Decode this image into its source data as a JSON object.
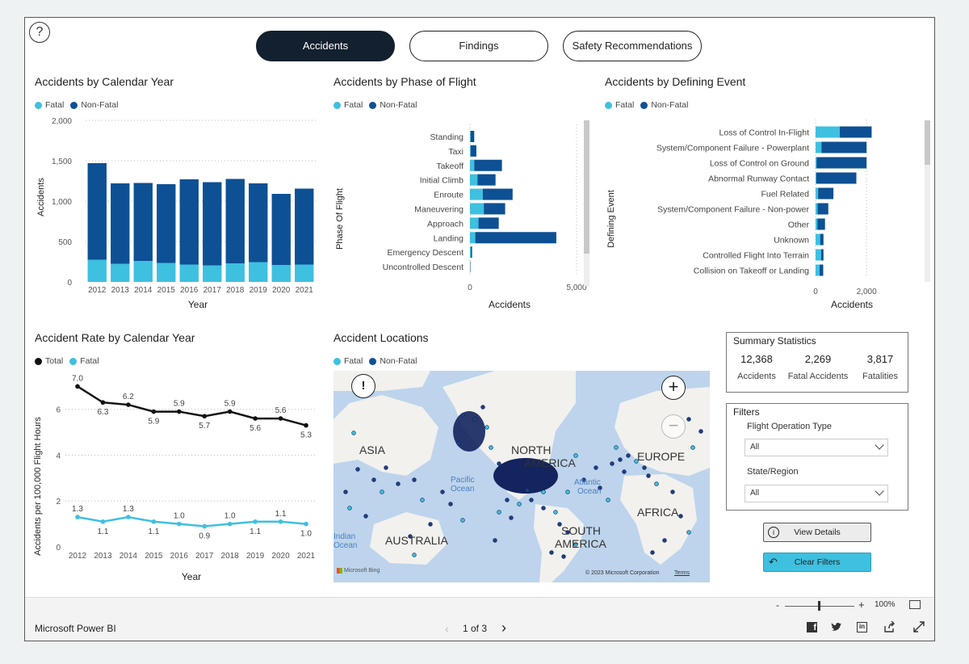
{
  "tabs": [
    {
      "label": "Accidents",
      "active": true
    },
    {
      "label": "Findings",
      "active": false
    },
    {
      "label": "Safety Recommendations",
      "active": false
    }
  ],
  "help_glyph": "?",
  "colors": {
    "fatal": "#3ec0e0",
    "nonfatal": "#0d5094",
    "total": "#111111"
  },
  "legend": {
    "fatal": "Fatal",
    "nonfatal": "Non-Fatal",
    "total": "Total"
  },
  "chart_data": [
    {
      "type": "bar",
      "title": "Accidents by Calendar Year",
      "stacked": true,
      "categories": [
        "2012",
        "2013",
        "2014",
        "2015",
        "2016",
        "2017",
        "2018",
        "2019",
        "2020",
        "2021"
      ],
      "series": [
        {
          "name": "Fatal",
          "values": [
            275,
            225,
            260,
            235,
            215,
            205,
            230,
            245,
            210,
            215
          ]
        },
        {
          "name": "Non-Fatal",
          "values": [
            1195,
            995,
            965,
            975,
            1055,
            1030,
            1045,
            975,
            880,
            940
          ]
        }
      ],
      "xlabel": "Year",
      "ylabel": "Accidents",
      "ylim": [
        0,
        2000
      ],
      "yticks": [
        "0",
        "500",
        "1,000",
        "1,500",
        "2,000"
      ],
      "grid": true,
      "legend": "top-left"
    },
    {
      "type": "bar",
      "orientation": "horizontal",
      "title": "Accidents by Phase of Flight",
      "stacked": true,
      "categories": [
        "Standing",
        "Taxi",
        "Takeoff",
        "Initial Climb",
        "Enroute",
        "Maneuvering",
        "Approach",
        "Landing",
        "Emergency Descent",
        "Uncontrolled Descent"
      ],
      "series": [
        {
          "name": "Fatal",
          "values": [
            30,
            30,
            200,
            350,
            600,
            650,
            400,
            250,
            40,
            0
          ]
        },
        {
          "name": "Non-Fatal",
          "values": [
            170,
            270,
            1300,
            850,
            1400,
            1000,
            950,
            3800,
            60,
            20
          ]
        }
      ],
      "xlabel": "Accidents",
      "ylabel": "Phase Of Flight",
      "xlim": [
        0,
        5000
      ],
      "xticks": [
        "0",
        "5,000"
      ],
      "grid": true,
      "legend": "top-left"
    },
    {
      "type": "bar",
      "orientation": "horizontal",
      "title": "Accidents by Defining Event",
      "stacked": true,
      "categories": [
        "Loss of Control In-Flight",
        "System/Component Failure - Powerplant",
        "Loss of Control on Ground",
        "Abnormal Runway Contact",
        "Fuel Related",
        "System/Component Failure - Non-power",
        "Other",
        "Unknown",
        "Controlled Flight Into Terrain",
        "Collision on Takeoff or Landing"
      ],
      "series": [
        {
          "name": "Fatal",
          "values": [
            950,
            230,
            40,
            30,
            100,
            80,
            70,
            180,
            220,
            160
          ]
        },
        {
          "name": "Non-Fatal",
          "values": [
            1250,
            1770,
            1960,
            1570,
            600,
            420,
            300,
            130,
            90,
            140
          ]
        }
      ],
      "xlabel": "Accidents",
      "ylabel": "Defining Event",
      "xlim": [
        0,
        3200
      ],
      "xticks": [
        "0",
        "2,000"
      ],
      "grid": true,
      "legend": "top-left"
    },
    {
      "type": "line",
      "title": "Accident Rate by Calendar Year",
      "x": [
        "2012",
        "2013",
        "2014",
        "2015",
        "2016",
        "2017",
        "2018",
        "2019",
        "2020",
        "2021"
      ],
      "series": [
        {
          "name": "Total",
          "values": [
            7.0,
            6.3,
            6.2,
            5.9,
            5.9,
            5.7,
            5.9,
            5.6,
            5.6,
            5.3
          ]
        },
        {
          "name": "Fatal",
          "values": [
            1.3,
            1.1,
            1.3,
            1.1,
            1.0,
            0.9,
            1.0,
            1.1,
            1.1,
            1.0
          ]
        }
      ],
      "total_labels": [
        "7.0",
        "6.3",
        "6.2",
        "5.9",
        "5.9",
        "5.7",
        "5.9",
        "5.6",
        "5.6",
        "5.3"
      ],
      "fatal_labels": [
        "1.3",
        "1.1",
        "1.3",
        "1.1",
        "1.0",
        "0.9",
        "1.0",
        "1.1",
        "1.1",
        "1.0"
      ],
      "xlabel": "Year",
      "ylabel": "Accidents per 100,000 Flight Hours",
      "ylim": [
        0,
        7.4
      ],
      "yticks": [
        "0",
        "2",
        "4",
        "6"
      ],
      "grid": true,
      "legend": "top-left"
    }
  ],
  "map": {
    "title": "Accident Locations",
    "info_glyph": "!",
    "zoom_in": "+",
    "zoom_out": "−",
    "regions": [
      "ASIA",
      "NORTH",
      "AMERICA",
      "EUROPE",
      "AFRICA",
      "AUSTRALIA",
      "SOUTH",
      "AMERICA"
    ],
    "oceans": [
      "Pacific",
      "Ocean",
      "Atlantic",
      "Ocean",
      "Indian",
      "Ocean"
    ],
    "attribution": "© 2023 Microsoft Corporation",
    "terms": "Terms",
    "bing": "Microsoft Bing"
  },
  "summary": {
    "title": "Summary Statistics",
    "stats": [
      {
        "value": "12,368",
        "label": "Accidents"
      },
      {
        "value": "2,269",
        "label": "Fatal Accidents"
      },
      {
        "value": "3,817",
        "label": "Fatalities"
      }
    ]
  },
  "filters": {
    "title": "Filters",
    "flight_operation_type": {
      "label": "Flight Operation Type",
      "value": "All"
    },
    "state_region": {
      "label": "State/Region",
      "value": "All"
    }
  },
  "buttons": {
    "view_details": "View Details",
    "clear_filters": "Clear Filters"
  },
  "footer": {
    "brand": "Microsoft Power BI",
    "page_indicator": "1 of 3",
    "zoom_level": "100%",
    "zoom_minus": "-",
    "zoom_plus": "+"
  }
}
